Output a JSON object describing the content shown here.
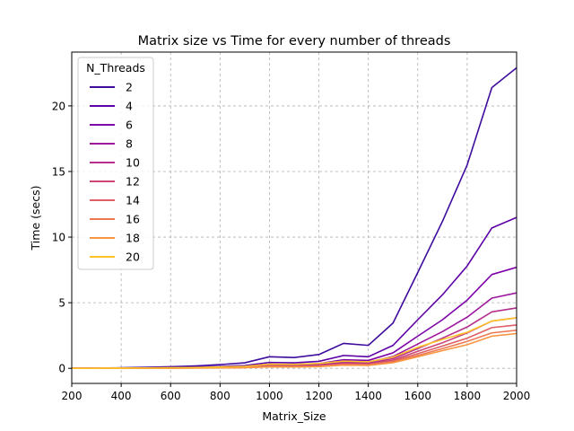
{
  "chart_data": {
    "type": "line",
    "title": "Matrix size vs Time for every number of threads",
    "xlabel": "Matrix_Size",
    "ylabel": "Time (secs)",
    "xlim": [
      200,
      2000
    ],
    "ylim": [
      -1.15,
      24.1
    ],
    "xticks": [
      200,
      400,
      600,
      800,
      1000,
      1200,
      1400,
      1600,
      1800,
      2000
    ],
    "yticks": [
      0,
      5,
      10,
      15,
      20
    ],
    "grid": true,
    "grid_style": "dashed",
    "legend": {
      "title": "N_Threads",
      "location": "upper-left"
    },
    "x": [
      200,
      300,
      400,
      500,
      600,
      700,
      800,
      900,
      1000,
      1100,
      1200,
      1300,
      1400,
      1500,
      1600,
      1700,
      1800,
      1900,
      2000
    ],
    "series": [
      {
        "name": "2",
        "color": "#3f0d9e",
        "values": [
          0.0,
          0.01,
          0.04,
          0.08,
          0.12,
          0.18,
          0.28,
          0.42,
          0.88,
          0.82,
          1.05,
          1.9,
          1.75,
          3.45,
          7.3,
          11.2,
          15.5,
          21.4,
          22.9
        ]
      },
      {
        "name": "4",
        "color": "#5c01a6",
        "values": [
          0.0,
          0.01,
          0.02,
          0.04,
          0.06,
          0.09,
          0.14,
          0.21,
          0.45,
          0.42,
          0.53,
          0.98,
          0.88,
          1.75,
          3.7,
          5.6,
          7.8,
          10.7,
          11.5
        ]
      },
      {
        "name": "6",
        "color": "#7e03a8",
        "values": [
          0.0,
          0.0,
          0.01,
          0.03,
          0.04,
          0.06,
          0.1,
          0.14,
          0.31,
          0.29,
          0.36,
          0.65,
          0.6,
          1.18,
          2.45,
          3.7,
          5.2,
          7.15,
          7.7
        ]
      },
      {
        "name": "8",
        "color": "#9c179e",
        "values": [
          0.0,
          0.0,
          0.01,
          0.02,
          0.03,
          0.05,
          0.07,
          0.11,
          0.24,
          0.22,
          0.28,
          0.5,
          0.46,
          0.9,
          1.85,
          2.8,
          3.9,
          5.35,
          5.75
        ]
      },
      {
        "name": "10",
        "color": "#b52f8c",
        "values": [
          0.0,
          0.0,
          0.01,
          0.02,
          0.03,
          0.04,
          0.06,
          0.09,
          0.2,
          0.18,
          0.23,
          0.42,
          0.38,
          0.75,
          1.5,
          2.3,
          3.15,
          4.3,
          4.6
        ]
      },
      {
        "name": "12",
        "color": "#cc4778",
        "values": [
          0.0,
          0.0,
          0.01,
          0.02,
          0.02,
          0.03,
          0.05,
          0.08,
          0.17,
          0.15,
          0.2,
          0.36,
          0.33,
          0.63,
          1.3,
          1.95,
          2.7,
          3.6,
          3.85
        ]
      },
      {
        "name": "14",
        "color": "#de5f65",
        "values": [
          0.0,
          0.0,
          0.01,
          0.01,
          0.02,
          0.03,
          0.04,
          0.07,
          0.14,
          0.13,
          0.17,
          0.31,
          0.28,
          0.55,
          1.12,
          1.7,
          2.3,
          3.1,
          3.3
        ]
      },
      {
        "name": "16",
        "color": "#ed7953",
        "values": [
          0.0,
          0.0,
          0.01,
          0.01,
          0.02,
          0.03,
          0.04,
          0.06,
          0.13,
          0.12,
          0.15,
          0.27,
          0.25,
          0.48,
          0.98,
          1.5,
          2.05,
          2.7,
          2.9
        ]
      },
      {
        "name": "18",
        "color": "#f89540",
        "values": [
          0.0,
          0.0,
          0.0,
          0.01,
          0.02,
          0.02,
          0.03,
          0.05,
          0.11,
          0.1,
          0.13,
          0.24,
          0.22,
          0.43,
          0.88,
          1.35,
          1.8,
          2.45,
          2.65
        ]
      },
      {
        "name": "20",
        "color": "#fdc328",
        "values": [
          0.0,
          0.01,
          0.02,
          0.03,
          0.04,
          0.06,
          0.1,
          0.15,
          0.32,
          0.3,
          0.37,
          0.55,
          0.5,
          0.85,
          1.6,
          2.2,
          2.75,
          3.6,
          3.85
        ]
      }
    ]
  }
}
